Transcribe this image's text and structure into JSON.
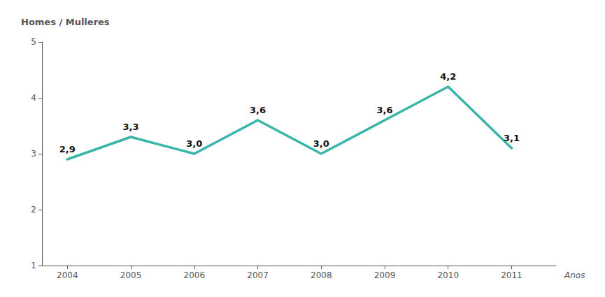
{
  "chart_data": {
    "type": "line",
    "x": [
      2004,
      2005,
      2006,
      2007,
      2008,
      2009,
      2010,
      2011
    ],
    "values": [
      2.9,
      3.3,
      3.0,
      3.6,
      3.0,
      3.6,
      4.2,
      3.1
    ],
    "value_labels": [
      "2,9",
      "3,3",
      "3,0",
      "3,6",
      "3,0",
      "3,6",
      "4,2",
      "3,1"
    ],
    "color": "#3ab5a8",
    "ylabel": "Homes / Mulleres",
    "xlabel": "Anos",
    "xlim": [
      2003.6,
      2011.7
    ],
    "xticks": [
      2004,
      2005,
      2006,
      2007,
      2008,
      2009,
      2010,
      2011
    ],
    "ylim": [
      1,
      5
    ],
    "yticks": [
      1,
      2,
      3,
      4,
      5
    ],
    "grid": false,
    "data_labels": true
  }
}
